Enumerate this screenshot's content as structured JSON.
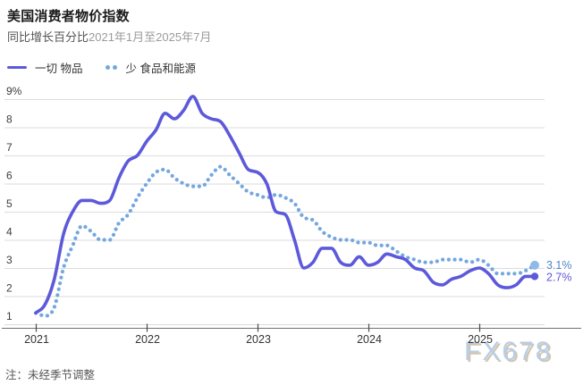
{
  "header": {
    "title": "美国消费者物价指数",
    "subtitle_metric": "同比增长百分比",
    "subtitle_range": "2021年1月至2025年7月"
  },
  "legend": {
    "items": [
      {
        "label": "一切 物品",
        "swatch": "solid-line"
      },
      {
        "label": "少 食品和能源",
        "swatch": "dotted-line"
      }
    ]
  },
  "footnote": "注：未经季节调整",
  "watermark": "FX678",
  "colors": {
    "all_items_line": "#5C59DB",
    "core_line": "#74A7DF",
    "core_end_dot": "#8FB9E8",
    "core_end_label": "#4D87C7",
    "all_items_end_label": "#5C59DB",
    "grid": "#DBDBDB",
    "axis_line": "#707070",
    "tick": "#4A4A4A",
    "axis_text": "#3D3D3D"
  },
  "chart_data": {
    "type": "line",
    "title": "美国消费者物价指数",
    "subtitle": "同比增长百分比 2021年1月至2025年7月",
    "note": "未经季节调整",
    "x_unit": "month",
    "x_start": "2021-01",
    "x_end": "2025-07",
    "x_tick_labels": [
      "2021",
      "2022",
      "2023",
      "2024",
      "2025"
    ],
    "ylim": [
      1,
      9
    ],
    "y_ticks": [
      1,
      2,
      3,
      4,
      5,
      6,
      7,
      8,
      9
    ],
    "y_top_suffix": "%",
    "grid": true,
    "legend_position": "top-left",
    "series": [
      {
        "name": "一切 物品",
        "style": "solid",
        "color": "#5C59DB",
        "end_label": "2.7%",
        "values": [
          1.4,
          1.7,
          2.6,
          4.2,
          5.0,
          5.4,
          5.4,
          5.3,
          5.4,
          6.2,
          6.8,
          7.0,
          7.5,
          7.9,
          8.5,
          8.3,
          8.6,
          9.1,
          8.5,
          8.3,
          8.2,
          7.7,
          7.1,
          6.5,
          6.4,
          6.0,
          5.0,
          4.9,
          4.0,
          3.0,
          3.2,
          3.7,
          3.7,
          3.2,
          3.1,
          3.4,
          3.1,
          3.2,
          3.5,
          3.4,
          3.3,
          3.0,
          2.9,
          2.5,
          2.4,
          2.6,
          2.7,
          2.9,
          3.0,
          2.8,
          2.4,
          2.3,
          2.4,
          2.7,
          2.7
        ]
      },
      {
        "name": "少 食品和能源",
        "style": "dotted",
        "color": "#74A7DF",
        "end_label": "3.1%",
        "values": [
          1.4,
          1.3,
          1.6,
          3.0,
          3.8,
          4.5,
          4.3,
          4.0,
          4.0,
          4.6,
          4.9,
          5.5,
          6.0,
          6.4,
          6.5,
          6.2,
          6.0,
          5.9,
          5.9,
          6.3,
          6.6,
          6.3,
          6.0,
          5.7,
          5.6,
          5.5,
          5.6,
          5.5,
          5.3,
          4.8,
          4.7,
          4.3,
          4.1,
          4.0,
          4.0,
          3.9,
          3.9,
          3.8,
          3.8,
          3.6,
          3.4,
          3.3,
          3.2,
          3.2,
          3.3,
          3.3,
          3.3,
          3.2,
          3.3,
          3.1,
          2.8,
          2.8,
          2.8,
          2.9,
          3.1
        ]
      }
    ]
  }
}
